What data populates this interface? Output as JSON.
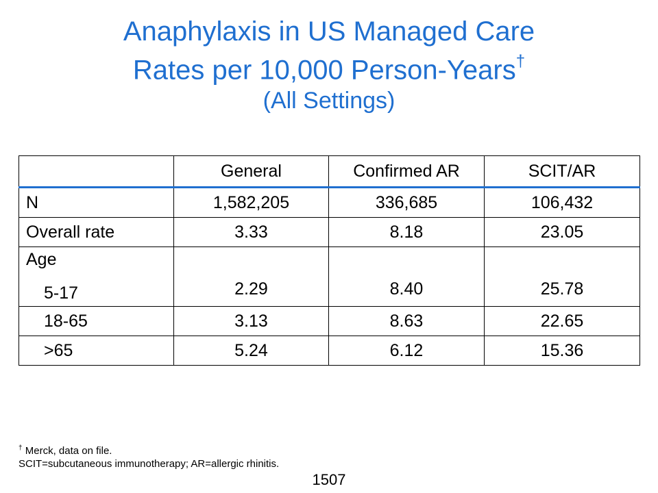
{
  "title": {
    "line1": "Anaphylaxis in US Managed Care",
    "line2": "Rates per 10,000 Person-Years",
    "dagger": "†",
    "subtitle": "(All Settings)"
  },
  "table": {
    "headers": [
      "",
      "General",
      "Confirmed AR",
      "SCIT/AR"
    ],
    "rows": {
      "n": {
        "label": "N",
        "values": [
          "1,582,205",
          "336,685",
          "106,432"
        ]
      },
      "overall": {
        "label": "Overall rate",
        "values": [
          "3.33",
          "8.18",
          "23.05"
        ]
      },
      "age_heading": "Age",
      "age_5_17": {
        "label": "5-17",
        "values": [
          "2.29",
          "8.40",
          "25.78"
        ]
      },
      "age_18_65": {
        "label": "18-65",
        "values": [
          "3.13",
          "8.63",
          "22.65"
        ]
      },
      "age_over_65": {
        "label": ">65",
        "values": [
          "5.24",
          "6.12",
          "15.36"
        ]
      }
    }
  },
  "footnote": {
    "dagger": "†",
    "line1": " Merck, data on file.",
    "line2": "SCIT=subcutaneous immunotherapy; AR=allergic rhinitis."
  },
  "page_number": "1507",
  "colors": {
    "title": "#1F6FD0",
    "header_rule": "#1F6FD0",
    "text": "#000000"
  }
}
